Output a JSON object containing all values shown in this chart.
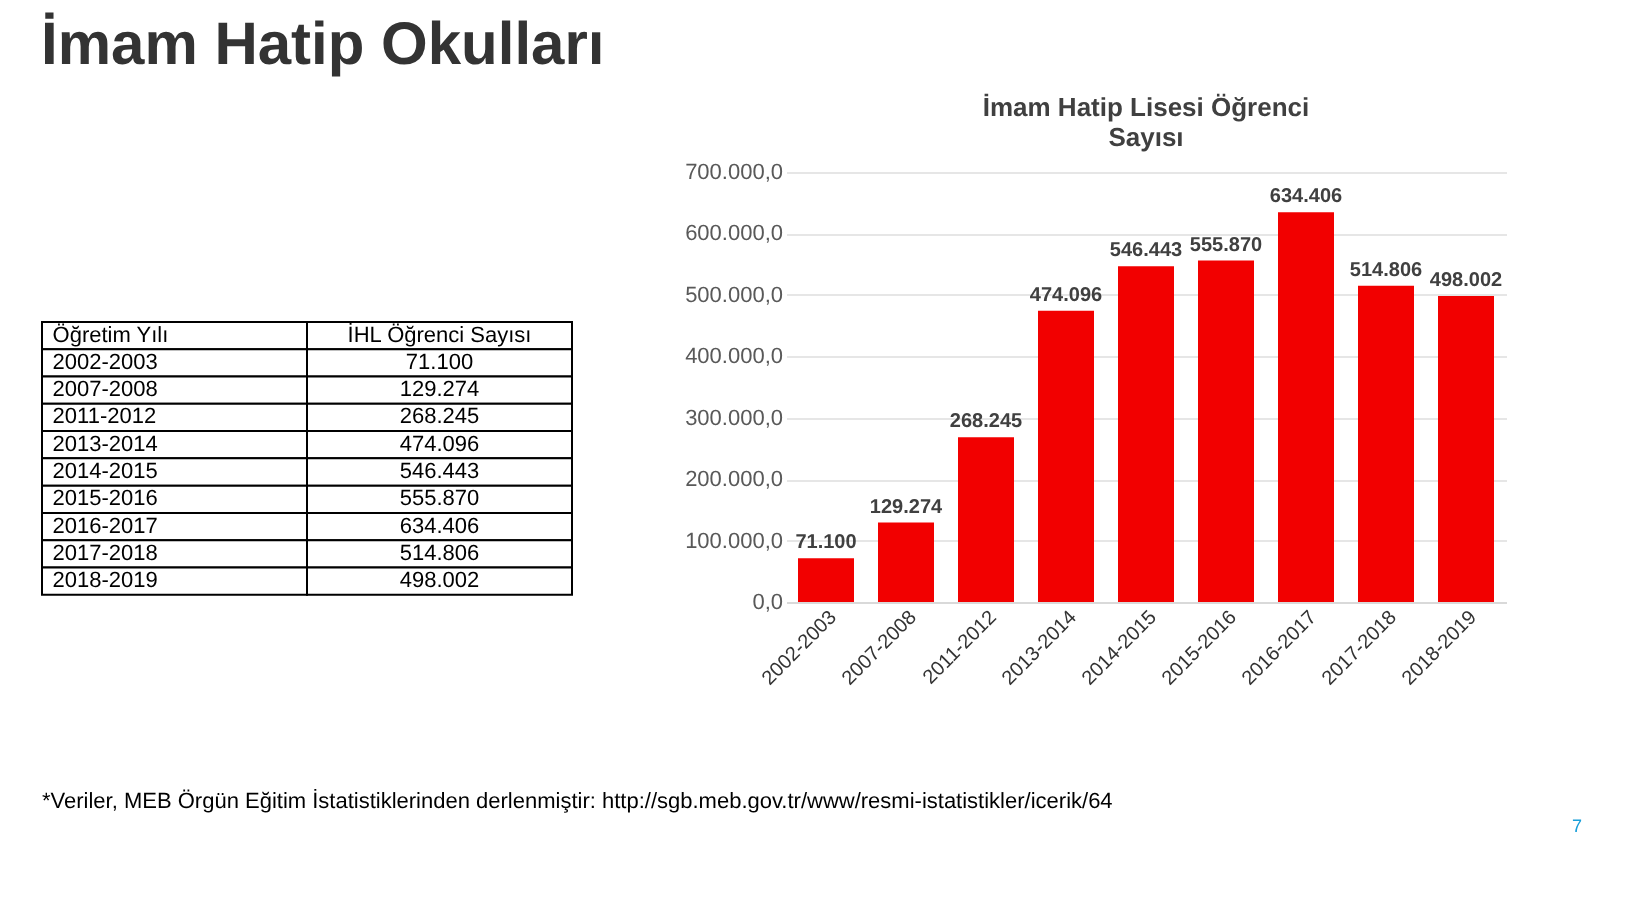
{
  "chart_data": {
    "type": "bar",
    "title": "İmam Hatip Okulları",
    "subtitle": "İmam Hatip Lisesi Öğrenci Sayısı",
    "categories": [
      "2002-2003",
      "2007-2008",
      "2011-2012",
      "2013-2014",
      "2014-2015",
      "2015-2016",
      "2016-2017",
      "2017-2018",
      "2018-2019"
    ],
    "values": [
      71100,
      129274,
      268245,
      474096,
      546443,
      555870,
      634406,
      514806,
      498002
    ],
    "value_labels": [
      "71.100",
      "129.274",
      "268.245",
      "474.096",
      "546.443",
      "555.870",
      "634.406",
      "514.806",
      "498.002"
    ],
    "color": "#f20000",
    "ylim": [
      0,
      700000
    ],
    "yticks": [
      {
        "value": 0,
        "label": "0,0"
      },
      {
        "value": 100000,
        "label": "100.000,0"
      },
      {
        "value": 200000,
        "label": "200.000,0"
      },
      {
        "value": 300000,
        "label": "300.000,0"
      },
      {
        "value": 400000,
        "label": "400.000,0"
      },
      {
        "value": 500000,
        "label": "500.000,0"
      },
      {
        "value": 600000,
        "label": "600.000,0"
      },
      {
        "value": 700000,
        "label": "700.000,0"
      }
    ],
    "grid": "y",
    "annotations": [
      "*Veriler, MEB Örgün Eğitim İstatistiklerinden derlenmiştir: http://sgb.meb.gov.tr/www/resmi-istatistikler/icerik/64",
      "Öğretim Yılı",
      "İHL Öğrenci Sayısı",
      "7"
    ]
  }
}
